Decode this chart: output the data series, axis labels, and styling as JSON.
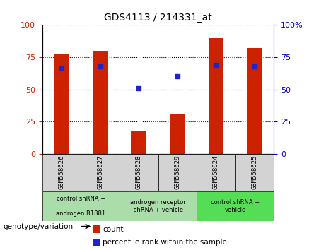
{
  "title": "GDS4113 / 214331_at",
  "samples": [
    "GSM558626",
    "GSM558627",
    "GSM558628",
    "GSM558629",
    "GSM558624",
    "GSM558625"
  ],
  "bar_heights": [
    77,
    80,
    18,
    31,
    90,
    82
  ],
  "percentile_ranks": [
    67,
    68,
    51,
    60,
    69,
    68
  ],
  "bar_color": "#cc2200",
  "dot_color": "#2222cc",
  "ylim": [
    0,
    100
  ],
  "yticks": [
    0,
    25,
    50,
    75,
    100
  ],
  "xlabel_label": "genotype/variation",
  "legend_count_label": "count",
  "legend_percentile_label": "percentile rank within the sample",
  "bar_width": 0.4,
  "tick_label_color_left": "#cc2200",
  "tick_label_color_right": "#0000cc",
  "sample_bg_color": "#d3d3d3",
  "group_info": [
    {
      "label": "control shRNA +\n\nandrogen R1881",
      "start": 0,
      "end": 2,
      "color": "#aaddaa"
    },
    {
      "label": "androgen receptor\nshRNA + vehicle",
      "start": 2,
      "end": 4,
      "color": "#aaddaa"
    },
    {
      "label": "control shRNA +\nvehicle",
      "start": 4,
      "end": 6,
      "color": "#55dd55"
    }
  ]
}
